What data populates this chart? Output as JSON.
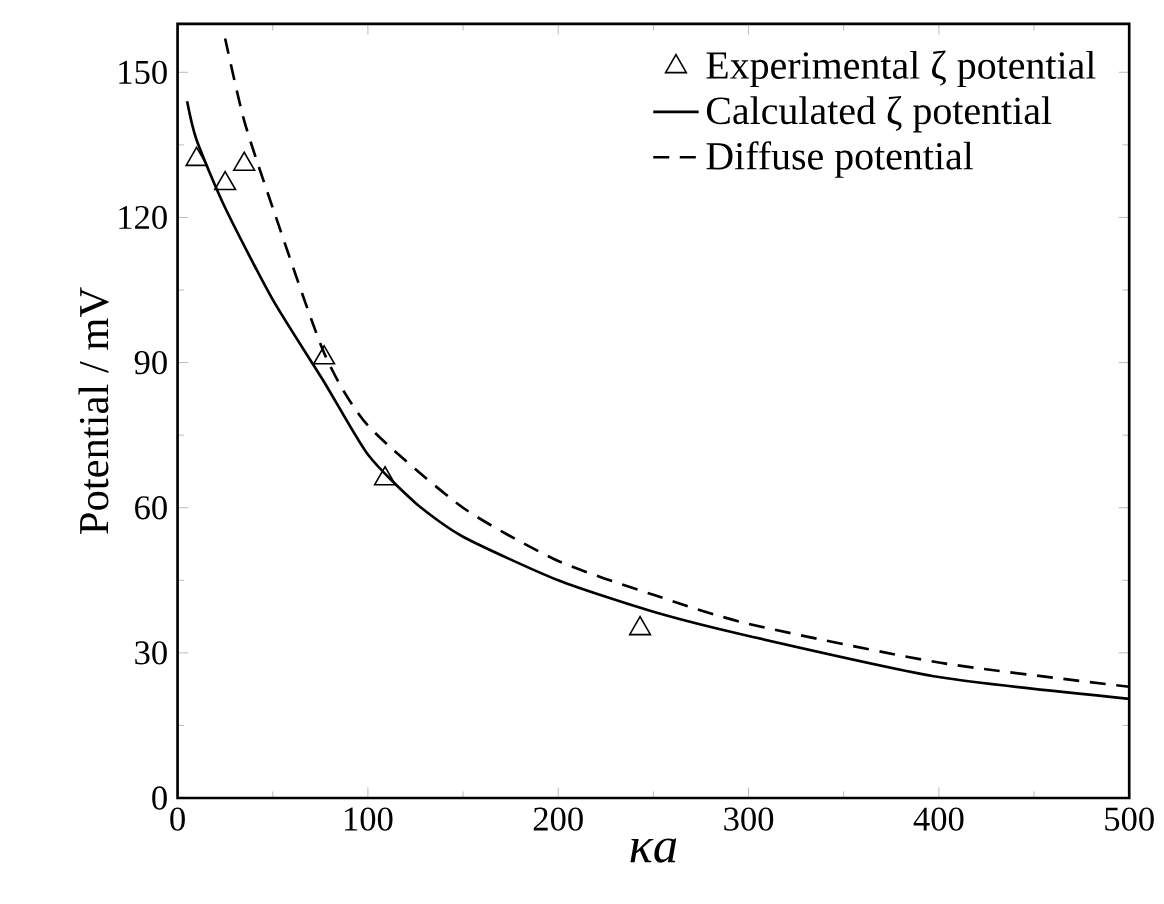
{
  "chart_data": {
    "type": "line",
    "xlabel": "*κa*",
    "ylabel": "Potential / mV",
    "xlim": [
      0,
      500
    ],
    "ylim": [
      0,
      160
    ],
    "xticks": [
      0,
      100,
      200,
      300,
      400,
      500
    ],
    "yticks": [
      0,
      30,
      60,
      90,
      120,
      150
    ],
    "legend": "top right",
    "grid": false,
    "series": [
      {
        "name": "Experimental ζ potential",
        "type": "scatter",
        "marker": "triangle",
        "color": "#000000",
        "x": [
          10,
          25,
          35,
          77,
          109,
          243
        ],
        "values": [
          132,
          127,
          131,
          91,
          66,
          35
        ]
      },
      {
        "name": "Calculated ζ potential",
        "line_style": "solid",
        "color": "#000000",
        "x": [
          5,
          10,
          25,
          50,
          77,
          100,
          125,
          150,
          200,
          250,
          300,
          400,
          500
        ],
        "values": [
          144,
          136,
          122,
          103,
          86,
          71,
          61,
          54,
          45,
          38.5,
          33.5,
          25,
          20.5
        ]
      },
      {
        "name": "Diffuse potential",
        "line_style": "dashed",
        "color": "#000000",
        "x": [
          25,
          35,
          50,
          77,
          100,
          150,
          200,
          250,
          300,
          400,
          500
        ],
        "values": [
          157,
          140,
          122,
          92,
          77,
          60,
          49,
          42,
          36,
          28,
          23
        ]
      }
    ]
  }
}
